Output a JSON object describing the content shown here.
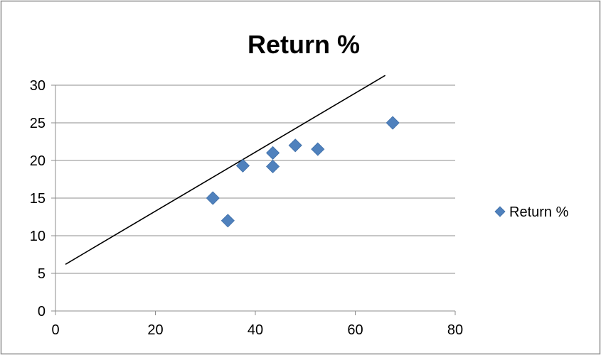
{
  "chart_data": {
    "type": "scatter",
    "title": "Return %",
    "xlabel": "",
    "ylabel": "",
    "xlim": [
      0,
      80
    ],
    "ylim": [
      0,
      30
    ],
    "x_ticks": [
      0,
      20,
      40,
      60,
      80
    ],
    "y_ticks": [
      0,
      5,
      10,
      15,
      20,
      25,
      30
    ],
    "grid": "horizontal",
    "legend_position": "right",
    "series": [
      {
        "name": "Return %",
        "color": "#4f81bd",
        "marker": "diamond",
        "points": [
          {
            "x": 31.5,
            "y": 15.0
          },
          {
            "x": 34.5,
            "y": 12.0
          },
          {
            "x": 37.5,
            "y": 19.3
          },
          {
            "x": 43.5,
            "y": 21.0
          },
          {
            "x": 43.5,
            "y": 19.2
          },
          {
            "x": 48.0,
            "y": 22.0
          },
          {
            "x": 52.5,
            "y": 21.5
          },
          {
            "x": 67.5,
            "y": 25.0
          }
        ]
      }
    ],
    "trend_line": {
      "from": {
        "x": 2,
        "y": 6.2
      },
      "to": {
        "x": 66,
        "y": 31.3
      },
      "color": "#000000"
    }
  }
}
